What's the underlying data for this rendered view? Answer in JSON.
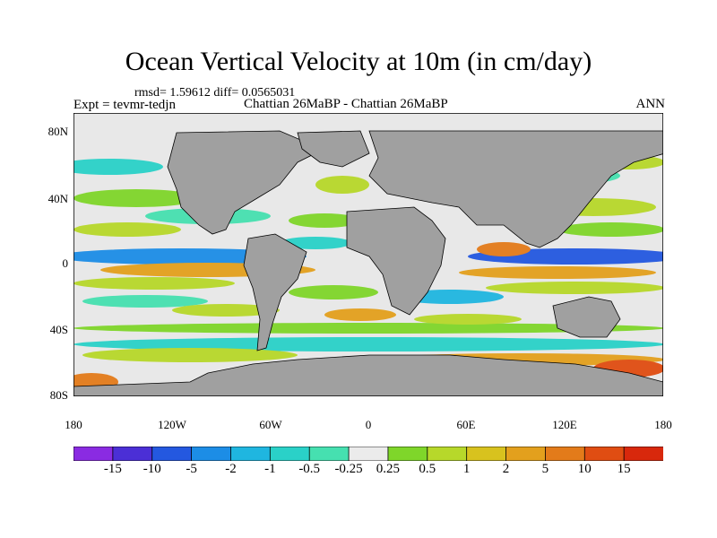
{
  "title": "Ocean Vertical Velocity at 10m (in cm/day)",
  "subtitle": {
    "stats": "rmsd= 1.59612 diff= 0.0565031",
    "experiment": "Expt = tevmr-tedjn",
    "comparison": "Chattian 26MaBP - Chattian 26MaBP",
    "season": "ANN"
  },
  "map": {
    "lat_labels": [
      "80N",
      "40N",
      "0",
      "40S",
      "80S"
    ],
    "lon_labels": [
      "180",
      "120W",
      "60W",
      "0",
      "60E",
      "120E",
      "180"
    ],
    "land_color": "#a0a0a0",
    "ocean_background_color": "#e8e8e8"
  },
  "colorbar": {
    "labels": [
      "-15",
      "-10",
      "-5",
      "-2",
      "-1",
      "-0.5",
      "-0.25",
      "0.25",
      "0.5",
      "1",
      "2",
      "5",
      "10",
      "15"
    ],
    "colors": [
      "#8a2be2",
      "#4b2fd6",
      "#2458e0",
      "#1c8de6",
      "#1fb6e0",
      "#2ad1c8",
      "#46e0b0",
      "#ebebeb",
      "#7fd62a",
      "#b7d82a",
      "#d8c21e",
      "#e3a01d",
      "#e37b1a",
      "#e04d12",
      "#d8280c"
    ]
  }
}
